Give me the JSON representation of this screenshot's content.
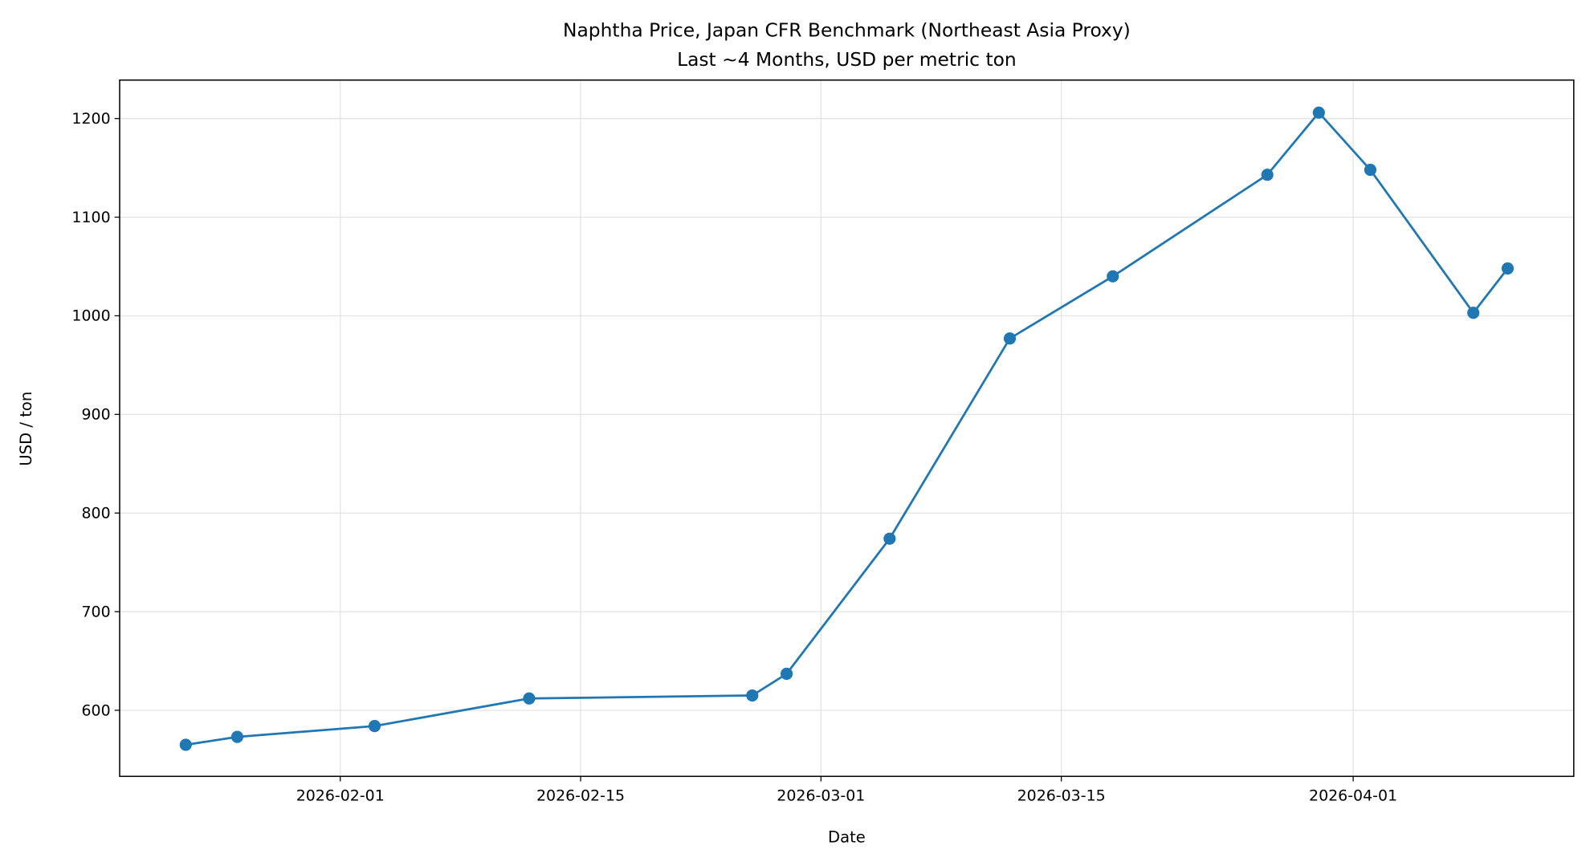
{
  "chart_data": {
    "type": "line",
    "title": "Naphtha Price, Japan CFR Benchmark (Northeast Asia Proxy)",
    "subtitle": "Last ~4 Months, USD per metric ton",
    "xlabel": "Date",
    "ylabel": "USD / ton",
    "x_ticks": [
      "2026-02-01",
      "2026-02-15",
      "2026-03-01",
      "2026-03-15",
      "2026-04-01"
    ],
    "y_ticks": [
      600,
      700,
      800,
      900,
      1000,
      1100,
      1200
    ],
    "xlim": [
      "2026-01-19",
      "2026-04-14"
    ],
    "ylim": [
      533,
      1239
    ],
    "grid": true,
    "color": "#1f77b4",
    "marker": "circle",
    "x": [
      "2026-01-23",
      "2026-01-26",
      "2026-02-03",
      "2026-02-12",
      "2026-02-25",
      "2026-02-27",
      "2026-03-05",
      "2026-03-12",
      "2026-03-18",
      "2026-03-27",
      "2026-03-30",
      "2026-04-02",
      "2026-04-08",
      "2026-04-10"
    ],
    "values": [
      565,
      573,
      584,
      612,
      615,
      637,
      774,
      977,
      1040,
      1143,
      1206,
      1148,
      1003,
      1048
    ]
  }
}
